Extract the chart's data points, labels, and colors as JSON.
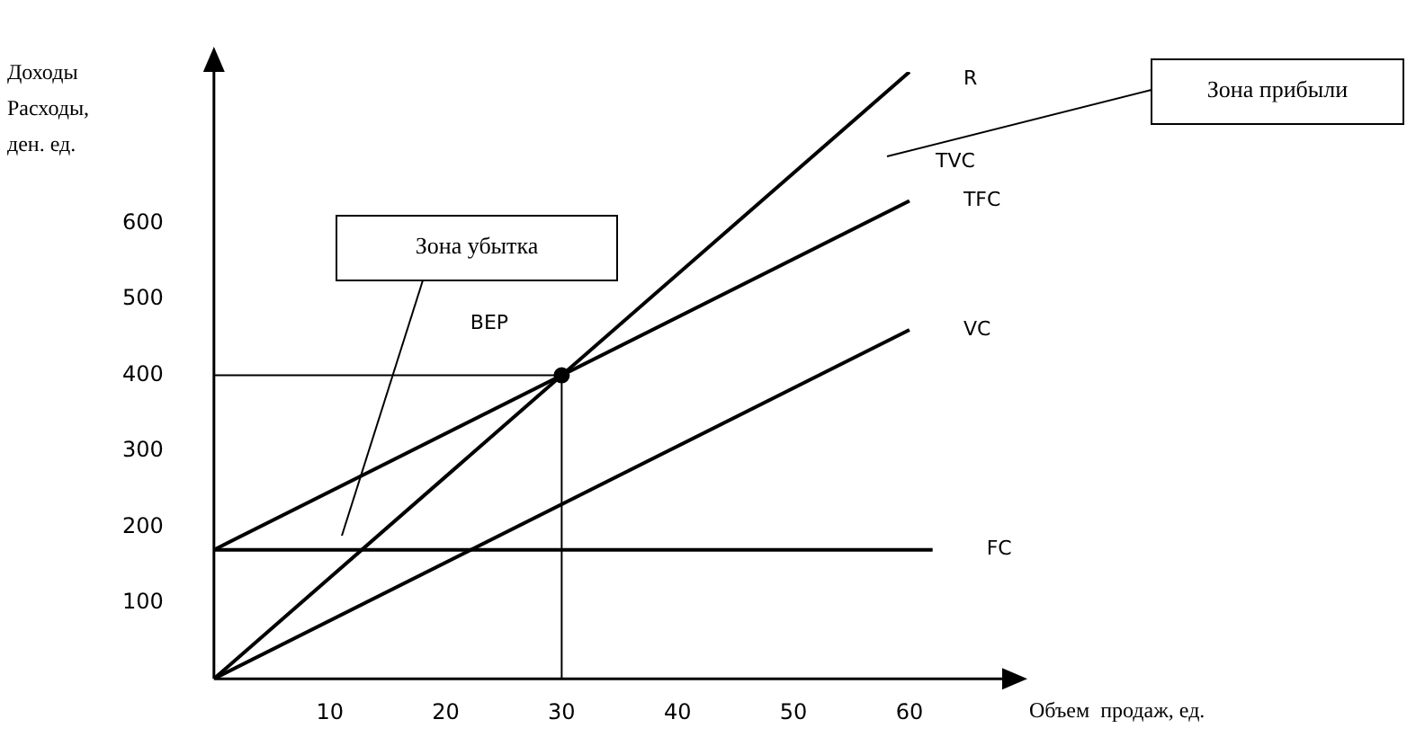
{
  "chart_data": {
    "type": "line",
    "xlabel": "Объем  продаж, ед.",
    "ylabel": "Доходы\nРасходы,\nден. ед.",
    "xlim": [
      0,
      68
    ],
    "ylim": [
      0,
      800
    ],
    "xticks": [
      10,
      20,
      30,
      40,
      50,
      60
    ],
    "yticks": [
      100,
      200,
      300,
      400,
      500,
      600
    ],
    "grid": false,
    "legend": false,
    "marker": "none",
    "line_style": "solid",
    "series": [
      {
        "name": "R",
        "color": "#000000",
        "x": [
          0,
          60
        ],
        "values": [
          0,
          800
        ]
      },
      {
        "name": "TFC",
        "color": "#000000",
        "x": [
          0,
          60
        ],
        "values": [
          170,
          630
        ]
      },
      {
        "name": "VC",
        "color": "#000000",
        "x": [
          0,
          60
        ],
        "values": [
          0,
          460
        ]
      },
      {
        "name": "FC",
        "color": "#000000",
        "x": [
          0,
          62
        ],
        "values": [
          170,
          170
        ]
      },
      {
        "type": "line",
        "color": "#000000",
        "x": [
          0,
          30
        ],
        "values": [
          400,
          400
        ]
      },
      {
        "type": "line",
        "color": "#000000",
        "x": [
          30,
          30
        ],
        "values": [
          0,
          400
        ]
      },
      {
        "type": "scatter",
        "color": "#000000",
        "marker": "circle",
        "x": [
          30
        ],
        "values": [
          400
        ]
      }
    ],
    "annotations": [
      "BEP",
      "Зона убытка",
      "Зона прибыли",
      "TVC"
    ]
  }
}
